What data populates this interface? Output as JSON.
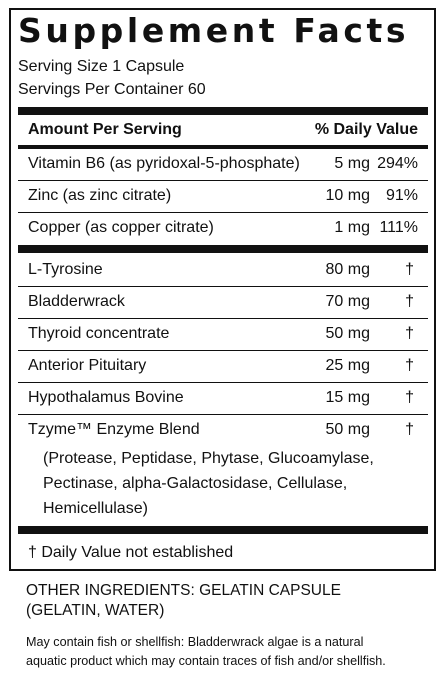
{
  "title": "Supplement Facts",
  "serving_size": "Serving Size 1 Capsule",
  "servings_per_container": "Servings Per Container 60",
  "header": {
    "amount_label": "Amount Per Serving",
    "dv_label": "% Daily Value"
  },
  "vitamins": [
    {
      "name": "Vitamin B6 (as pyridoxal-5-phosphate)",
      "amount": "5 mg",
      "dv": "294%"
    },
    {
      "name": "Zinc (as zinc citrate)",
      "amount": "10 mg",
      "dv": "91%"
    },
    {
      "name": "Copper (as copper citrate)",
      "amount": "1 mg",
      "dv": "111%"
    }
  ],
  "ingredients": [
    {
      "name": "L-Tyrosine",
      "amount": "80 mg",
      "dv": "†"
    },
    {
      "name": "Bladderwrack",
      "amount": "70 mg",
      "dv": "†"
    },
    {
      "name": "Thyroid concentrate",
      "amount": "50 mg",
      "dv": "†"
    },
    {
      "name": "Anterior Pituitary",
      "amount": "25 mg",
      "dv": "†"
    },
    {
      "name": "Hypothalamus Bovine",
      "amount": "15 mg",
      "dv": "†"
    },
    {
      "name": "Tzyme™ Enzyme Blend",
      "amount": "50 mg",
      "dv": "†"
    }
  ],
  "blend_lines": [
    "(Protease, Peptidase, Phytase, Glucoamylase,",
    "Pectinase, alpha-Galactosidase, Cellulase,",
    "Hemicellulase)"
  ],
  "footnote": "† Daily Value not established",
  "other_ingredients": [
    "OTHER INGREDIENTS: GELATIN CAPSULE",
    "(GELATIN, WATER)"
  ],
  "warning": [
    "May contain fish or shellfish: Bladderwrack algae is a natural",
    "aquatic product which may contain traces of fish and/or shellfish."
  ]
}
